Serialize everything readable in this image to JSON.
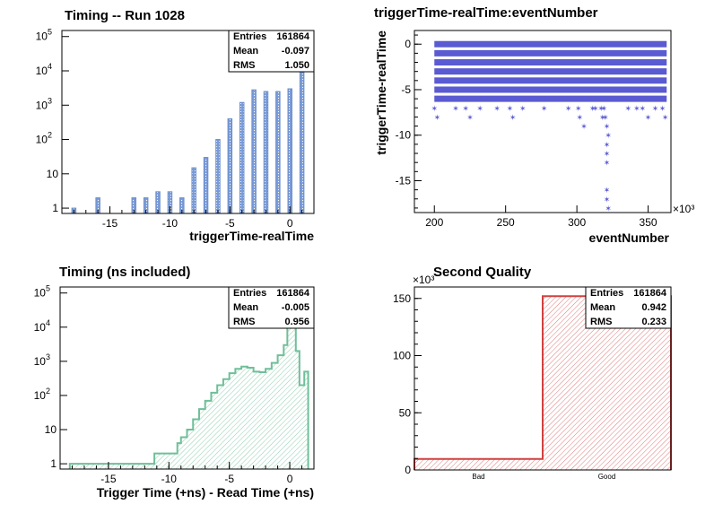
{
  "chart_data": [
    {
      "type": "bar",
      "title": "Timing -- Run 1028",
      "xlabel": "triggerTime-realTime",
      "ylabel": "",
      "yscale": "log",
      "xlim": [
        -19,
        2
      ],
      "ylim": [
        0.7,
        150000
      ],
      "xticks": [
        "-15",
        "-10",
        "-5",
        "0"
      ],
      "yticks": [
        "1",
        "10",
        "10^2",
        "10^3",
        "10^4",
        "10^5"
      ],
      "x": [
        -18,
        -16,
        -13,
        -12,
        -11,
        -10,
        -9,
        -8,
        -7,
        -6,
        -5,
        -4,
        -3,
        -2,
        -1,
        0,
        1
      ],
      "values": [
        1,
        2,
        2,
        2,
        3,
        3,
        2,
        15,
        30,
        100,
        400,
        1200,
        2800,
        2500,
        2500,
        3000,
        100000
      ],
      "stats": {
        "entries_label": "Entries",
        "entries": "161864",
        "mean_label": "Mean",
        "mean": "-0.097",
        "rms_label": "RMS",
        "rms": "1.050"
      },
      "color": "#6b8fc9"
    },
    {
      "type": "scatter",
      "title": "triggerTime-realTime:eventNumber",
      "xlabel": "eventNumber",
      "ylabel": "triggerTime-realTime",
      "xlim": [
        186,
        366
      ],
      "ylim": [
        -18.5,
        1.5
      ],
      "xticks": [
        "200",
        "250",
        "300",
        "350"
      ],
      "yticks": [
        "0",
        "-5",
        "-10",
        "-15"
      ],
      "x_exponent": "×10³",
      "bands": [
        {
          "y": 0,
          "x": [
            200,
            363
          ]
        },
        {
          "y": -1,
          "x": [
            200,
            363
          ]
        },
        {
          "y": -2,
          "x": [
            200,
            363
          ]
        },
        {
          "y": -3,
          "x": [
            200,
            363
          ]
        },
        {
          "y": -4,
          "x": [
            200,
            363
          ]
        },
        {
          "y": -5,
          "x": [
            200,
            363
          ]
        },
        {
          "y": -6,
          "x": [
            200,
            363
          ]
        }
      ],
      "points": [
        [
          200,
          -7
        ],
        [
          202,
          -8
        ],
        [
          215,
          -7
        ],
        [
          222,
          -7
        ],
        [
          225,
          -8
        ],
        [
          232,
          -7
        ],
        [
          244,
          -7
        ],
        [
          253,
          -7
        ],
        [
          255,
          -8
        ],
        [
          262,
          -7
        ],
        [
          277,
          -7
        ],
        [
          287,
          -5
        ],
        [
          294,
          -7
        ],
        [
          301,
          -7
        ],
        [
          302,
          -8
        ],
        [
          305,
          -9
        ],
        [
          311,
          -7
        ],
        [
          313,
          -7
        ],
        [
          317,
          -7
        ],
        [
          318,
          -8
        ],
        [
          319,
          -7
        ],
        [
          320,
          -8
        ],
        [
          321,
          -9
        ],
        [
          322,
          -10
        ],
        [
          321,
          -11
        ],
        [
          321,
          -12
        ],
        [
          321,
          -13
        ],
        [
          321,
          -16
        ],
        [
          321,
          -17
        ],
        [
          322,
          -18
        ],
        [
          336,
          -7
        ],
        [
          342,
          -7
        ],
        [
          346,
          -7
        ],
        [
          350,
          -8
        ],
        [
          355,
          -7
        ],
        [
          360,
          -7
        ],
        [
          362,
          -8
        ]
      ],
      "color": "#5a5ad2"
    },
    {
      "type": "histogram",
      "title": "Timing (ns included)",
      "xlabel": "Trigger Time (+ns) - Read Time (+ns)",
      "ylabel": "",
      "yscale": "log",
      "xlim": [
        -19,
        2
      ],
      "ylim": [
        0.7,
        150000
      ],
      "xticks": [
        "-15",
        "-10",
        "-5",
        "0"
      ],
      "yticks": [
        "1",
        "10",
        "10^2",
        "10^3",
        "10^4",
        "10^5"
      ],
      "curve": [
        [
          -18.2,
          1
        ],
        [
          -17.7,
          1
        ],
        [
          -16.9,
          1
        ],
        [
          -16.5,
          1
        ],
        [
          -15.9,
          1
        ],
        [
          -14.5,
          1
        ],
        [
          -13.6,
          1
        ],
        [
          -12.6,
          1
        ],
        [
          -11.6,
          1
        ],
        [
          -11.2,
          2
        ],
        [
          -10,
          2
        ],
        [
          -9.7,
          2
        ],
        [
          -9.3,
          4
        ],
        [
          -9,
          6
        ],
        [
          -8.5,
          10
        ],
        [
          -8,
          20
        ],
        [
          -7.5,
          40
        ],
        [
          -7,
          70
        ],
        [
          -6.5,
          120
        ],
        [
          -6,
          200
        ],
        [
          -5.5,
          300
        ],
        [
          -5,
          450
        ],
        [
          -4.5,
          600
        ],
        [
          -4,
          700
        ],
        [
          -3.5,
          650
        ],
        [
          -3,
          500
        ],
        [
          -2.5,
          480
        ],
        [
          -2,
          600
        ],
        [
          -1.5,
          900
        ],
        [
          -1,
          1500
        ],
        [
          -0.5,
          3000
        ],
        [
          -0.2,
          10000
        ],
        [
          0,
          60000
        ],
        [
          0.2,
          100000
        ],
        [
          0.5,
          2000
        ],
        [
          0.8,
          200
        ],
        [
          1.2,
          500
        ],
        [
          1.3,
          500
        ]
      ],
      "stats": {
        "entries_label": "Entries",
        "entries": "161864",
        "mean_label": "Mean",
        "mean": "-0.005",
        "rms_label": "RMS",
        "rms": "0.956"
      },
      "color": "#6fbf9a"
    },
    {
      "type": "histogram",
      "title": "Second Quality",
      "xlabel": "",
      "ylabel": "",
      "categories": [
        "Bad",
        "Good"
      ],
      "values": [
        9.6,
        152
      ],
      "ylim": [
        0,
        160
      ],
      "yticks": [
        "0",
        "50",
        "100",
        "150"
      ],
      "y_exponent": "×10³",
      "stats": {
        "entries_label": "Entries",
        "entries": "161864",
        "mean_label": "Mean",
        "mean": "0.942",
        "rms_label": "RMS",
        "rms": "0.233"
      },
      "color": "#d04040"
    }
  ]
}
